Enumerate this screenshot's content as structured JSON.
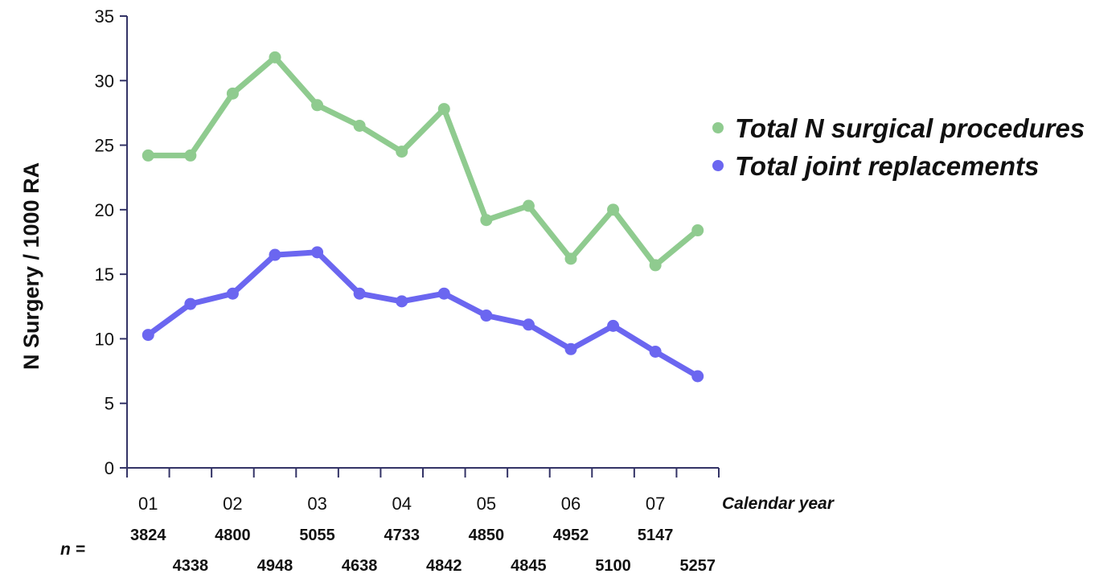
{
  "chart_data": {
    "type": "line",
    "ylabel": "N Surgery / 1000 RA",
    "xlabel": "Calendar year",
    "ylim": [
      0,
      35
    ],
    "yticks": [
      0,
      5,
      10,
      15,
      20,
      25,
      30,
      35
    ],
    "year_labels": [
      "01",
      "02",
      "03",
      "04",
      "05",
      "06",
      "07"
    ],
    "x": [
      "01a",
      "01b",
      "02a",
      "02b",
      "03a",
      "03b",
      "04a",
      "04b",
      "05a",
      "05b",
      "06a",
      "06b",
      "07a",
      "07b"
    ],
    "n_label": "n =",
    "n_values": [
      "3824",
      "4338",
      "4800",
      "4948",
      "5055",
      "4638",
      "4733",
      "4842",
      "4850",
      "4845",
      "4952",
      "5100",
      "5147",
      "5257"
    ],
    "legend_position": "right",
    "grid": false,
    "series": [
      {
        "name": "Total N surgical procedures",
        "color": "#8fcb8f",
        "values": [
          24.2,
          24.2,
          29.0,
          31.8,
          28.1,
          26.5,
          24.5,
          27.8,
          19.2,
          20.3,
          16.2,
          20.0,
          15.7,
          18.4
        ]
      },
      {
        "name": "Total joint replacements",
        "color": "#6b66f0",
        "values": [
          10.3,
          12.7,
          13.5,
          16.5,
          16.7,
          13.5,
          12.9,
          13.5,
          11.8,
          11.1,
          9.2,
          11.0,
          9.0,
          7.1
        ]
      }
    ]
  }
}
